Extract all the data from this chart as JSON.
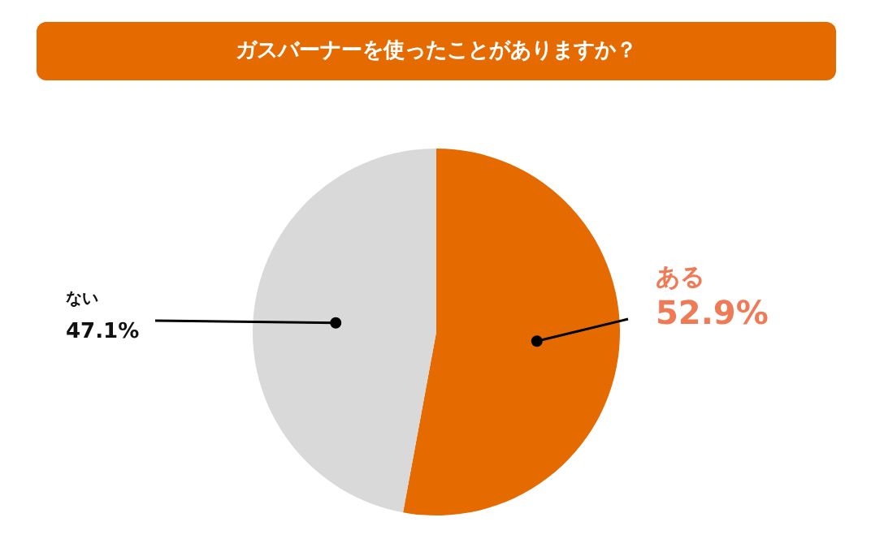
{
  "chart_data": {
    "type": "pie",
    "title": "ガスバーナーを使ったことがありますか？",
    "categories": [
      "ある",
      "ない"
    ],
    "values": [
      52.9,
      47.1
    ],
    "colors": [
      "#e56a00",
      "#d9d9d9"
    ],
    "value_labels": [
      "52.9%",
      "47.1%"
    ]
  }
}
